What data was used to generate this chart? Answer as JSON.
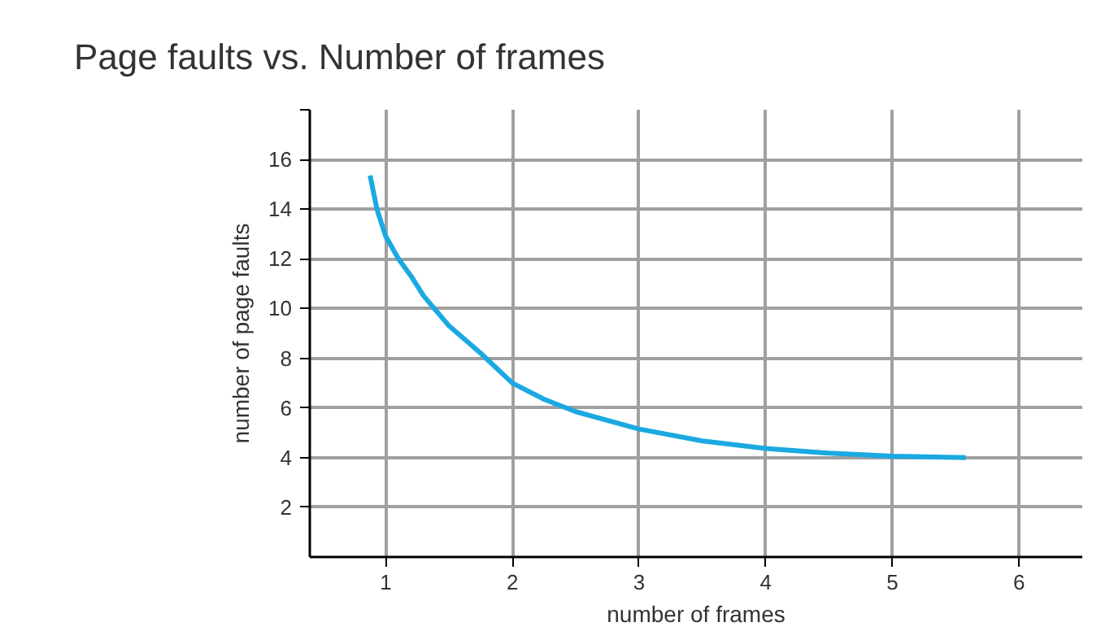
{
  "chart_data": {
    "type": "line",
    "title": "Page faults vs. Number of frames",
    "xlabel": "number of frames",
    "ylabel": "number of page faults",
    "x": [
      0.876,
      0.93,
      1,
      1.1,
      1.2,
      1.3,
      1.5,
      1.75,
      2,
      2.25,
      2.5,
      3,
      3.5,
      4,
      4.5,
      5,
      5.58
    ],
    "series": [
      {
        "color": "#1ba9e1",
        "values": [
          15.35,
          14.0,
          12.9,
          12.0,
          11.3,
          10.5,
          9.3,
          8.2,
          7.0,
          6.35,
          5.85,
          5.15,
          4.67,
          4.37,
          4.18,
          4.06,
          4.0
        ]
      }
    ],
    "xlim": [
      0.4,
      6.5
    ],
    "ylim": [
      0,
      18
    ],
    "xticks": [
      1,
      2,
      3,
      4,
      5,
      6
    ],
    "yticks": [
      2,
      4,
      6,
      8,
      10,
      12,
      14,
      16,
      {
        "value": 18,
        "label": null
      }
    ],
    "grid": true,
    "line_style": "solid"
  }
}
